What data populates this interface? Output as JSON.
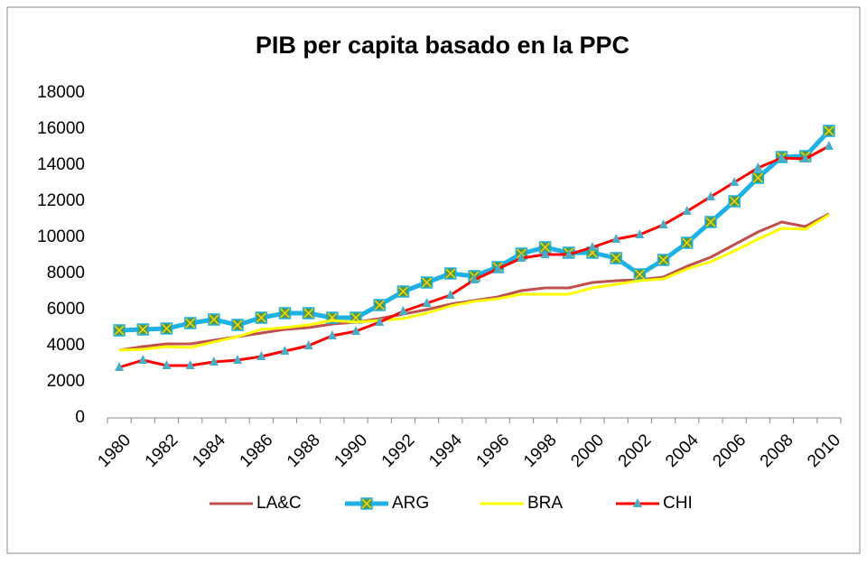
{
  "chart_data": {
    "type": "line",
    "title": "PIB per capita basado en la PPC",
    "categories": [
      "1980",
      null,
      "1982",
      null,
      "1984",
      null,
      "1986",
      null,
      "1988",
      null,
      "1990",
      null,
      "1992",
      null,
      "1994",
      null,
      "1996",
      null,
      "1998",
      null,
      "2000",
      null,
      "2002",
      null,
      "2004",
      null,
      "2006",
      null,
      "2008",
      null,
      "2010"
    ],
    "ylim": [
      0,
      18000
    ],
    "yticks": [
      0,
      2000,
      4000,
      6000,
      8000,
      10000,
      12000,
      14000,
      16000,
      18000
    ],
    "grid": false,
    "legend": "bottom",
    "series": [
      {
        "name": "LA&C",
        "color": "#c0504d",
        "marker": "none",
        "values": [
          3750,
          3950,
          4100,
          4100,
          4300,
          4500,
          4700,
          4900,
          5000,
          5200,
          5300,
          5500,
          5750,
          6000,
          6300,
          6500,
          6700,
          7050,
          7200,
          7200,
          7500,
          7600,
          7650,
          7800,
          8400,
          8900,
          9600,
          10300,
          10850,
          10600,
          11300
        ]
      },
      {
        "name": "ARG",
        "color": "#1fb1e6",
        "marker": "square",
        "values": [
          4850,
          4900,
          4950,
          5250,
          5450,
          5150,
          5550,
          5800,
          5800,
          5550,
          5550,
          6250,
          7000,
          7500,
          8000,
          7850,
          8350,
          9100,
          9450,
          9150,
          9150,
          8850,
          7950,
          8750,
          9700,
          10850,
          12000,
          13300,
          14450,
          14500,
          15900
        ]
      },
      {
        "name": "BRA",
        "color": "#ffff00",
        "marker": "none",
        "values": [
          3750,
          3800,
          3950,
          3900,
          4200,
          4500,
          4900,
          5000,
          5150,
          5400,
          5300,
          5400,
          5500,
          5800,
          6200,
          6450,
          6600,
          6850,
          6850,
          6850,
          7200,
          7400,
          7600,
          7700,
          8250,
          8650,
          9250,
          9900,
          10500,
          10450,
          11250
        ]
      },
      {
        "name": "CHI",
        "color": "#ff0000",
        "marker": "triangle",
        "values": [
          2800,
          3200,
          2900,
          2900,
          3100,
          3200,
          3400,
          3700,
          4000,
          4550,
          4800,
          5300,
          5900,
          6350,
          6800,
          7650,
          8250,
          8850,
          9050,
          9050,
          9450,
          9900,
          10150,
          10700,
          11450,
          12250,
          13050,
          13850,
          14400,
          14350,
          15050
        ]
      }
    ]
  }
}
